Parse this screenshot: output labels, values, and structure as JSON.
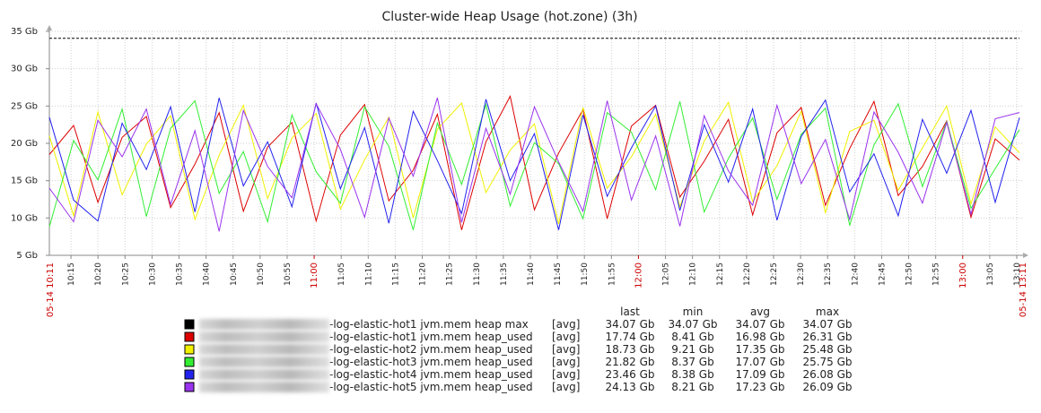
{
  "chart_data": {
    "type": "line",
    "title": "Cluster-wide Heap Usage (hot.zone) (3h)",
    "unit": "Gb",
    "ylim": [
      5,
      35
    ],
    "yticks": [
      "5 Gb",
      "10 Gb",
      "15 Gb",
      "20 Gb",
      "25 Gb",
      "30 Gb",
      "35 Gb"
    ],
    "x_start": "05-14 10:11",
    "x_end": "05-14 13:11",
    "xticks": [
      "10:15",
      "10:20",
      "10:25",
      "10:30",
      "10:35",
      "10:40",
      "10:45",
      "10:50",
      "10:55",
      "11:00",
      "11:05",
      "11:10",
      "11:15",
      "11:20",
      "11:25",
      "11:30",
      "11:35",
      "11:40",
      "11:45",
      "11:50",
      "11:55",
      "12:00",
      "12:05",
      "12:10",
      "12:15",
      "12:20",
      "12:25",
      "12:30",
      "12:35",
      "12:40",
      "12:45",
      "12:50",
      "12:55",
      "13:00",
      "13:05",
      "13:10"
    ],
    "xticks_major": [
      "11:00",
      "12:00",
      "13:00"
    ],
    "grid": true,
    "legend_headers": [
      "last",
      "min",
      "avg",
      "max"
    ],
    "series": [
      {
        "name": "-log-elastic-hot1 jvm.mem heap max",
        "color": "#000000",
        "func": "[avg]",
        "last": "34.07 Gb",
        "min": "34.07 Gb",
        "avg": "34.07 Gb",
        "max": "34.07 Gb",
        "values": [
          34.07,
          34.07
        ]
      },
      {
        "name": "-log-elastic-hot1 jvm.mem heap_used",
        "color": "#dd0000",
        "func": "[avg]",
        "last": "17.74 Gb",
        "min": "8.41 Gb",
        "avg": "16.98 Gb",
        "max": "26.31 Gb",
        "values": [
          18.5,
          22.4,
          12.1,
          20.8,
          23.6,
          11.4,
          17.2,
          24.1,
          10.9,
          19.5,
          22.8,
          9.6,
          21.1,
          25.2,
          12.3,
          16.4,
          23.9,
          8.4,
          20.2,
          26.3,
          11.1,
          18.7,
          24.5,
          9.9,
          22.3,
          25.1,
          12.8,
          17.6,
          23.2,
          10.4,
          21.4,
          24.8,
          11.7,
          19.3,
          25.6,
          13.0,
          16.9,
          23.0,
          10.1,
          20.6,
          17.74
        ]
      },
      {
        "name": "-log-elastic-hot2 jvm.mem heap_used",
        "color": "#f0f000",
        "func": "[avg]",
        "last": "18.73 Gb",
        "min": "9.21 Gb",
        "avg": "17.35 Gb",
        "max": "25.48 Gb",
        "values": [
          21.0,
          10.3,
          24.2,
          13.1,
          19.9,
          23.7,
          9.8,
          18.4,
          25.1,
          12.6,
          20.7,
          24.0,
          11.2,
          17.8,
          23.5,
          10.0,
          21.9,
          25.4,
          13.4,
          19.1,
          22.6,
          9.2,
          24.8,
          14.0,
          18.2,
          23.9,
          11.5,
          20.3,
          25.5,
          12.2,
          17.0,
          24.3,
          10.7,
          21.6,
          23.1,
          13.7,
          19.4,
          25.0,
          11.9,
          22.2,
          18.73
        ]
      },
      {
        "name": "-log-elastic-hot3 jvm.mem heap_used",
        "color": "#33ee33",
        "func": "[avg]",
        "last": "21.82 Gb",
        "min": "8.37 Gb",
        "avg": "17.07 Gb",
        "max": "25.75 Gb",
        "values": [
          8.8,
          20.4,
          15.1,
          24.6,
          10.2,
          22.0,
          25.7,
          13.3,
          18.9,
          9.5,
          23.8,
          16.2,
          12.0,
          24.9,
          19.6,
          8.4,
          22.7,
          14.5,
          25.2,
          11.6,
          20.1,
          17.3,
          9.9,
          24.1,
          21.5,
          13.8,
          25.6,
          10.8,
          18.0,
          23.4,
          12.5,
          21.2,
          24.7,
          9.0,
          19.8,
          25.3,
          14.2,
          22.9,
          11.3,
          16.6,
          21.82
        ]
      },
      {
        "name": "-log-elastic-hot4 jvm.mem heap_used",
        "color": "#2222ee",
        "func": "[avg]",
        "last": "23.46 Gb",
        "min": "8.38 Gb",
        "avg": "17.09 Gb",
        "max": "26.08 Gb",
        "values": [
          23.5,
          12.4,
          9.6,
          22.7,
          16.5,
          24.9,
          10.8,
          26.1,
          14.3,
          20.2,
          11.5,
          25.4,
          13.9,
          22.1,
          9.3,
          24.3,
          17.7,
          10.6,
          25.9,
          15.0,
          21.3,
          8.4,
          23.8,
          12.9,
          19.4,
          25.0,
          11.0,
          22.5,
          14.8,
          24.6,
          9.7,
          20.9,
          25.8,
          13.5,
          18.6,
          10.3,
          23.2,
          16.0,
          24.4,
          12.1,
          23.46
        ]
      },
      {
        "name": "-log-elastic-hot5 jvm.mem heap_used",
        "color": "#9933ee",
        "func": "[avg]",
        "last": "24.13 Gb",
        "min": "8.21 Gb",
        "avg": "17.23 Gb",
        "max": "26.09 Gb",
        "values": [
          14.0,
          9.5,
          23.1,
          18.2,
          24.6,
          11.8,
          21.7,
          8.2,
          24.4,
          16.9,
          12.7,
          25.3,
          19.2,
          10.1,
          23.4,
          15.6,
          26.1,
          9.4,
          22.0,
          13.2,
          24.9,
          17.5,
          10.9,
          25.7,
          12.4,
          21.0,
          8.9,
          23.7,
          16.3,
          11.7,
          25.1,
          14.6,
          20.5,
          9.8,
          24.2,
          18.8,
          12.0,
          22.8,
          10.5,
          23.3,
          24.13
        ]
      }
    ]
  }
}
